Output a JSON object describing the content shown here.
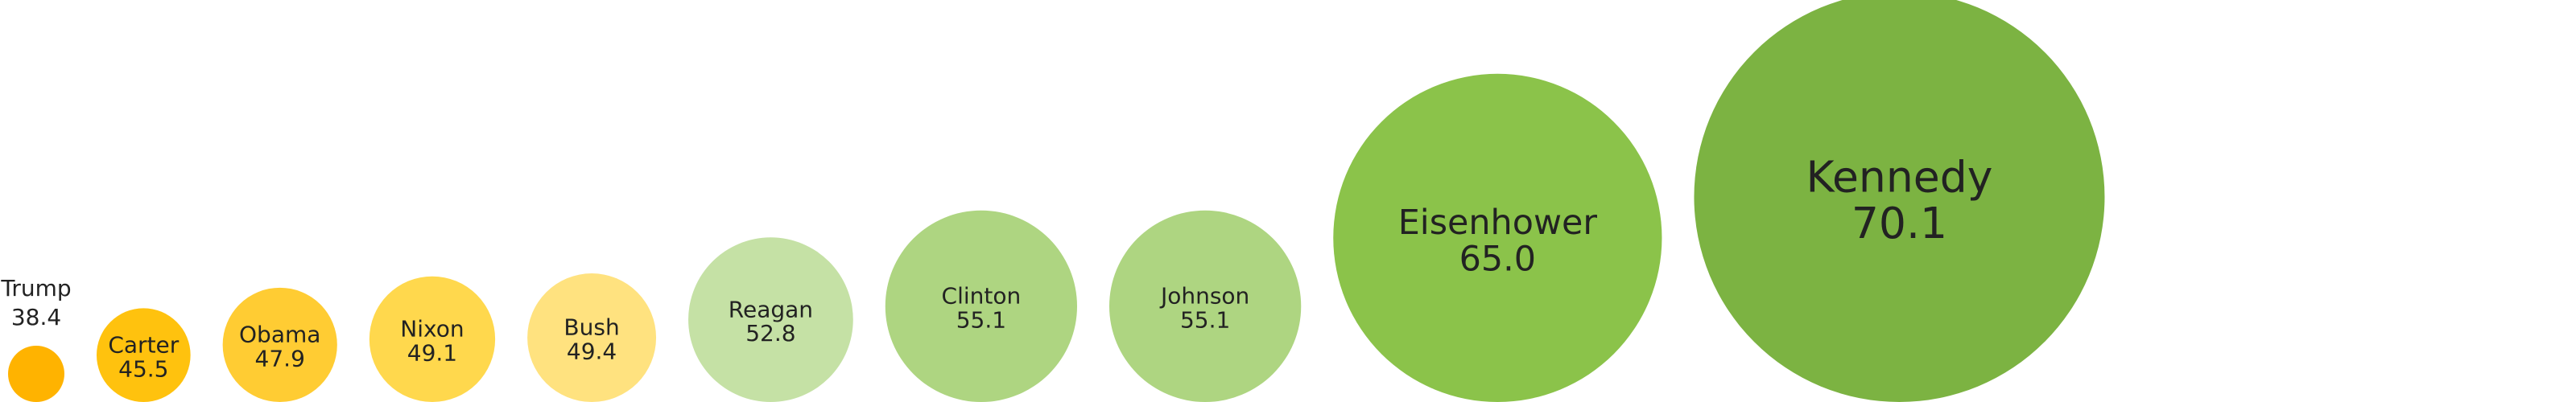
{
  "chart_data": {
    "type": "bubble",
    "title": "",
    "xlabel": "",
    "ylabel": "",
    "categories": [
      "Trump",
      "Carter",
      "Obama",
      "Nixon",
      "Bush",
      "Reagan",
      "Clinton",
      "Johnson",
      "Eisenhower",
      "Kennedy"
    ],
    "values": [
      38.4,
      45.5,
      47.9,
      49.1,
      49.4,
      52.8,
      55.1,
      55.1,
      65.0,
      70.1
    ],
    "value_labels": [
      "38.4",
      "45.5",
      "47.9",
      "49.1",
      "49.4",
      "52.8",
      "55.1",
      "55.1",
      "65.0",
      "70.1"
    ],
    "colors": [
      "#FFB300",
      "#FFC20E",
      "#FFCC33",
      "#FFD84D",
      "#FFE27F",
      "#C5E1A5",
      "#AED581",
      "#AED581",
      "#8BC34A",
      "#7CB342"
    ],
    "legend": false,
    "grid": false
  }
}
